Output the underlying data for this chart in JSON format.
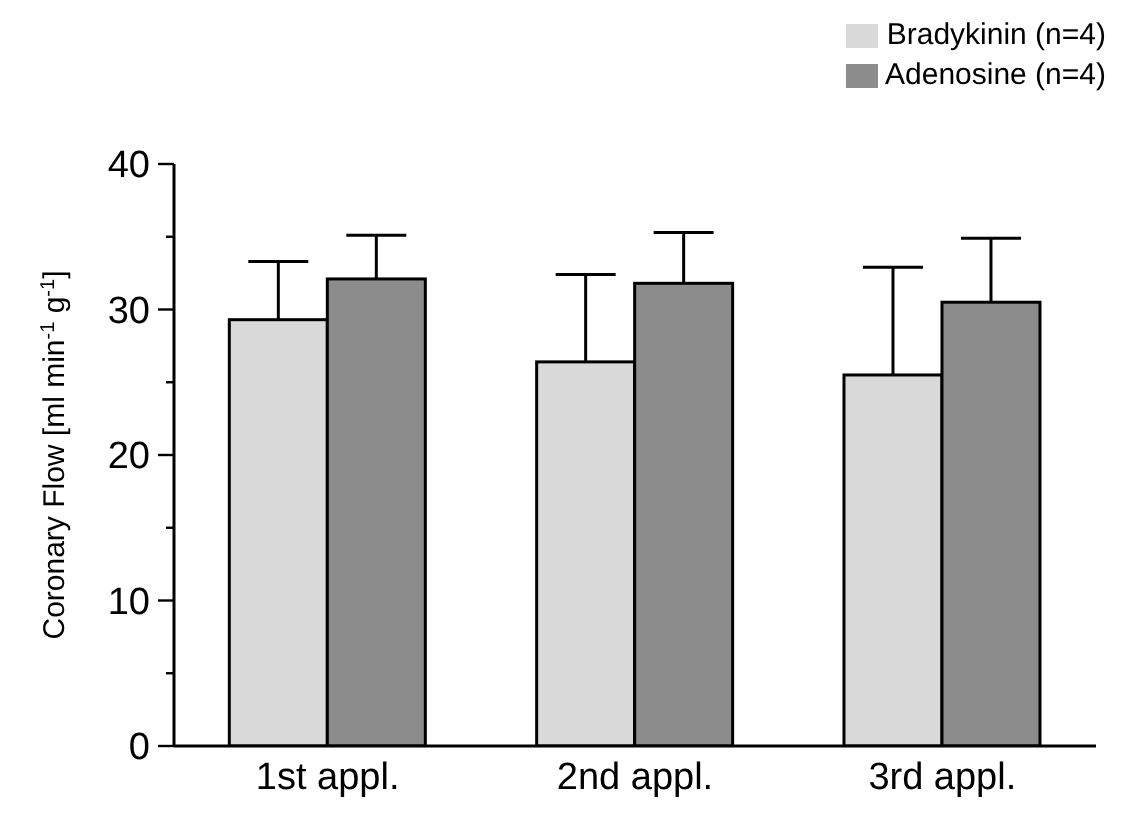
{
  "chart_data": {
    "type": "bar",
    "ylabel": "Coronary Flow [ml min$^{-1}$ g$^{-1}$]",
    "categories": [
      "1st appl.",
      "2nd appl.",
      "3rd appl."
    ],
    "series": [
      {
        "name": "Bradykinin (n=4)",
        "color": "#d9d9d9",
        "values": [
          29.3,
          26.4,
          25.5
        ],
        "errors": [
          [
            29.3,
            33.3
          ],
          [
            26.4,
            32.4
          ],
          [
            25.5,
            32.9
          ]
        ]
      },
      {
        "name": "Adenosine (n=4)",
        "color": "#8c8c8c",
        "values": [
          32.1,
          31.8,
          30.5
        ],
        "errors": [
          [
            32.1,
            35.1
          ],
          [
            31.8,
            35.3
          ],
          [
            30.5,
            34.9
          ]
        ]
      }
    ],
    "ylim": [
      0,
      40
    ],
    "yticks": [
      0,
      {
        "value": 5,
        "label": null
      },
      10,
      {
        "value": 15,
        "label": null
      },
      20,
      {
        "value": 25,
        "label": null
      },
      30,
      {
        "value": 35,
        "label": null
      },
      40
    ],
    "grid": false,
    "legend": "top right"
  }
}
